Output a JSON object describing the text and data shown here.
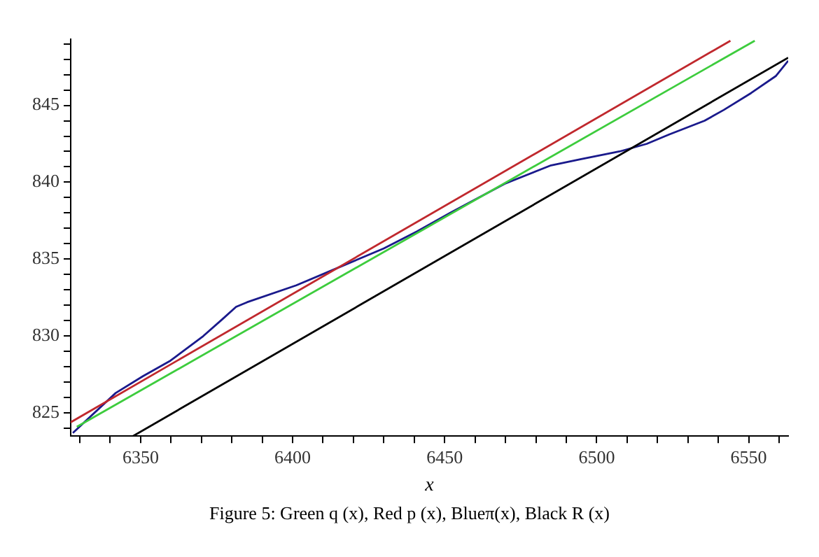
{
  "chart_data": {
    "type": "line",
    "xlabel": "x",
    "annotations": [
      "Figure 5: Green q (x), Red p (x), Blueπ(x), Black R (x)"
    ],
    "xlim": [
      6327,
      6563
    ],
    "xticks": [
      {
        "value": 6330,
        "label": null
      },
      {
        "value": 6340,
        "label": null
      },
      6350,
      {
        "value": 6360,
        "label": null
      },
      {
        "value": 6370,
        "label": null
      },
      {
        "value": 6380,
        "label": null
      },
      {
        "value": 6390,
        "label": null
      },
      6400,
      {
        "value": 6410,
        "label": null
      },
      {
        "value": 6420,
        "label": null
      },
      {
        "value": 6430,
        "label": null
      },
      {
        "value": 6440,
        "label": null
      },
      6450,
      {
        "value": 6460,
        "label": null
      },
      {
        "value": 6470,
        "label": null
      },
      {
        "value": 6480,
        "label": null
      },
      {
        "value": 6490,
        "label": null
      },
      6500,
      {
        "value": 6510,
        "label": null
      },
      {
        "value": 6520,
        "label": null
      },
      {
        "value": 6530,
        "label": null
      },
      {
        "value": 6540,
        "label": null
      },
      6550,
      {
        "value": 6560,
        "label": null
      }
    ],
    "ylim": [
      823.5,
      849.3
    ],
    "yticks": [
      {
        "value": 824,
        "label": null
      },
      825,
      {
        "value": 826,
        "label": null
      },
      {
        "value": 827,
        "label": null
      },
      {
        "value": 828,
        "label": null
      },
      {
        "value": 829,
        "label": null
      },
      830,
      {
        "value": 831,
        "label": null
      },
      {
        "value": 832,
        "label": null
      },
      {
        "value": 833,
        "label": null
      },
      {
        "value": 834,
        "label": null
      },
      835,
      {
        "value": 836,
        "label": null
      },
      {
        "value": 837,
        "label": null
      },
      {
        "value": 838,
        "label": null
      },
      {
        "value": 839,
        "label": null
      },
      840,
      {
        "value": 841,
        "label": null
      },
      {
        "value": 842,
        "label": null
      },
      {
        "value": 843,
        "label": null
      },
      {
        "value": 844,
        "label": null
      },
      845,
      {
        "value": 846,
        "label": null
      },
      {
        "value": 847,
        "label": null
      },
      {
        "value": 848,
        "label": null
      },
      {
        "value": 849,
        "label": null
      }
    ],
    "grid": false,
    "legend": false,
    "marker": "none",
    "line_style": "solid",
    "series": [
      {
        "color": "#c0282d",
        "x": [
          6327,
          6544
        ],
        "values": [
          824.4,
          849.2
        ]
      },
      {
        "color": "#3dcc3d",
        "x": [
          6329,
          6552
        ],
        "values": [
          824.1,
          849.2
        ]
      },
      {
        "color": "#000000",
        "x": [
          6347.5,
          6563
        ],
        "values": [
          823.5,
          848.1
        ]
      },
      {
        "color": "#1a1a8c",
        "x": [
          6327.7,
          6341.8,
          6350.8,
          6359.8,
          6370.6,
          6376.9,
          6381.4,
          6385,
          6401.2,
          6415.6,
          6430,
          6440.9,
          6451.7,
          6469.7,
          6485,
          6494.9,
          6507.5,
          6516.5,
          6523.8,
          6535.5,
          6541.8,
          6550.8,
          6558.9,
          6563
        ],
        "values": [
          823.7,
          826.3,
          827.4,
          828.4,
          830,
          831.1,
          831.9,
          832.2,
          833.3,
          834.5,
          835.7,
          836.8,
          838,
          839.9,
          841.1,
          841.5,
          842,
          842.5,
          843.1,
          844,
          844.7,
          845.8,
          846.9,
          847.9
        ]
      }
    ]
  }
}
